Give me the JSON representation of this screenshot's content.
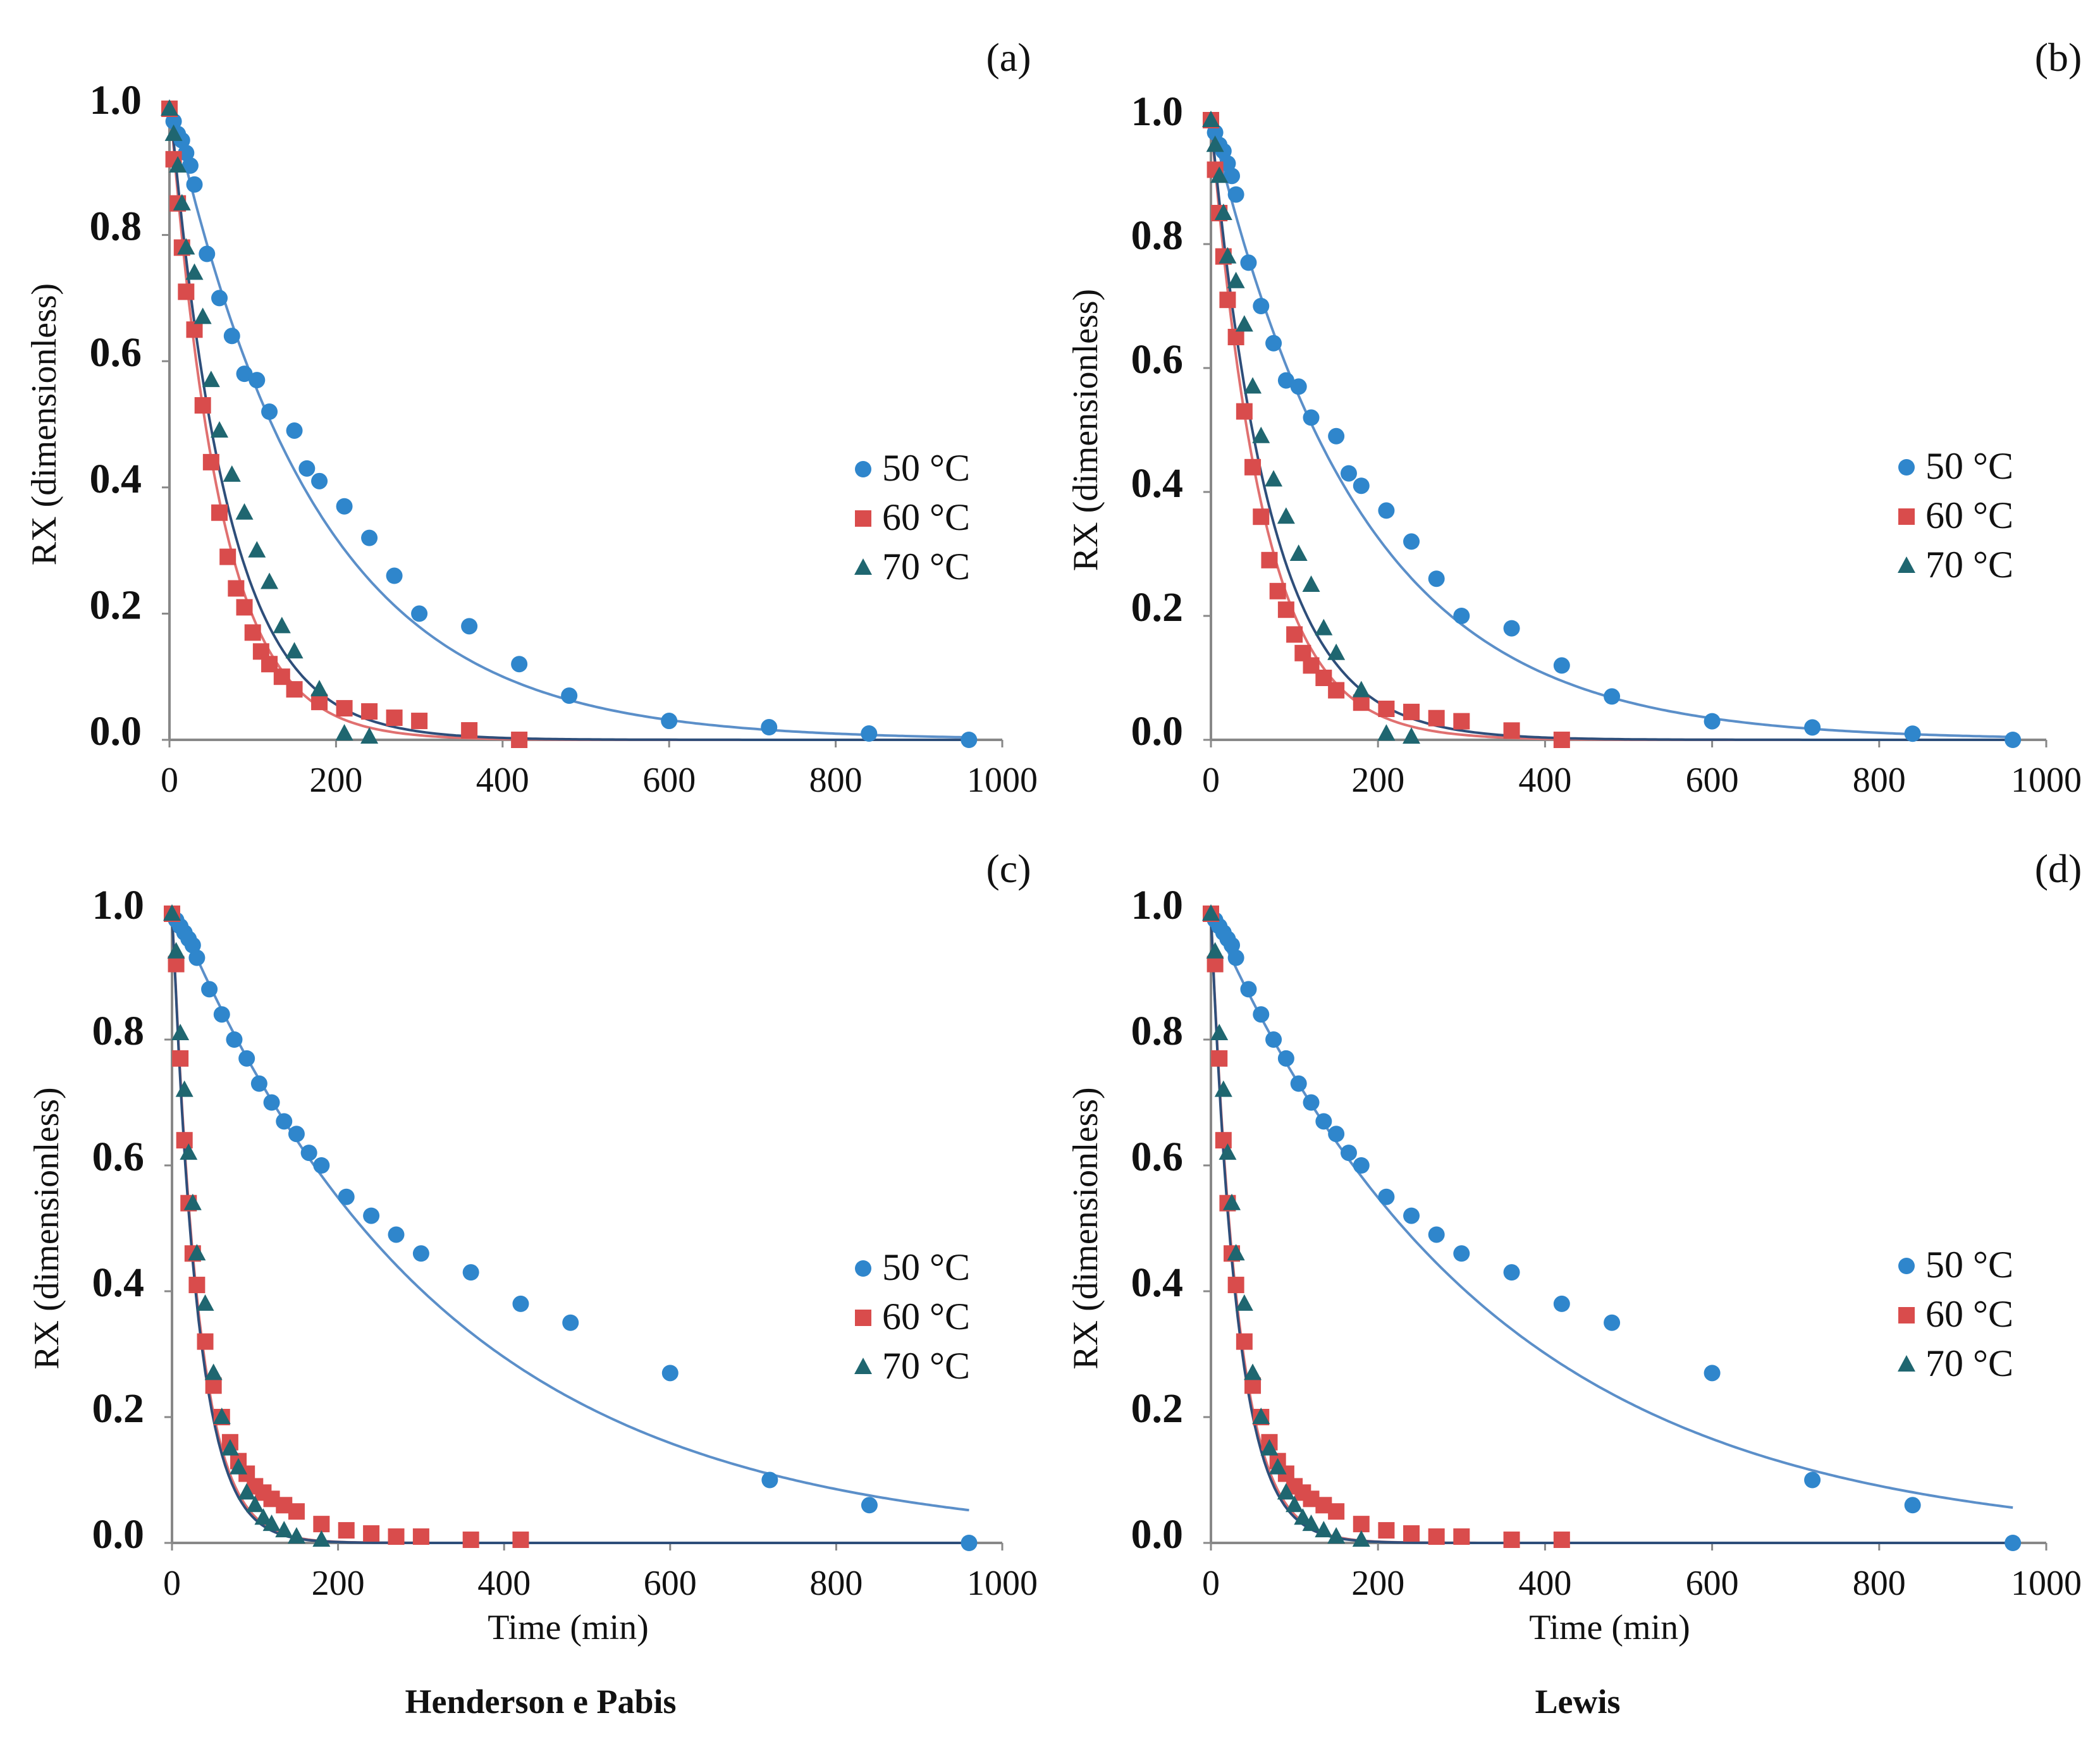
{
  "colors": {
    "s50": "#2f86cc",
    "s60": "#d94c4c",
    "s70": "#1f6670",
    "fit50": "#5b8fc9",
    "fit60": "#e07070",
    "fit70": "#2e4e7a",
    "axis": "#888888",
    "text": "#111111"
  },
  "captions": {
    "left": "Henderson e Pabis",
    "right": "Lewis"
  },
  "chart_data": [
    {
      "type": "scatter",
      "panel_label": "(a)",
      "ylabel": "RX (dimensionless)",
      "xlabel": "",
      "xlim": [
        0,
        1000
      ],
      "ylim": [
        0,
        1.0
      ],
      "xticks": [
        "0",
        "200",
        "400",
        "600",
        "800",
        "1000"
      ],
      "yticks": [
        "0.0",
        "0.2",
        "0.4",
        "0.6",
        "0.8",
        "1.0"
      ],
      "grid": false,
      "legend": "right",
      "series": [
        {
          "name": "50 °C",
          "marker": "circle",
          "color_key": "s50",
          "line_key": "fit50",
          "x": [
            0,
            5,
            10,
            15,
            20,
            25,
            30,
            45,
            60,
            75,
            90,
            105,
            120,
            150,
            165,
            180,
            210,
            240,
            270,
            300,
            360,
            420,
            480,
            600,
            720,
            840,
            960
          ],
          "y": [
            1.0,
            0.98,
            0.96,
            0.95,
            0.93,
            0.91,
            0.88,
            0.77,
            0.7,
            0.64,
            0.58,
            0.57,
            0.52,
            0.49,
            0.43,
            0.41,
            0.37,
            0.32,
            0.26,
            0.2,
            0.18,
            0.12,
            0.07,
            0.03,
            0.02,
            0.01,
            0.0
          ],
          "fit": {
            "a": 1.02,
            "k": 0.0058
          }
        },
        {
          "name": "60 °C",
          "marker": "square",
          "color_key": "s60",
          "line_key": "fit60",
          "x": [
            0,
            5,
            10,
            15,
            20,
            30,
            40,
            50,
            60,
            70,
            80,
            90,
            100,
            110,
            120,
            135,
            150,
            180,
            210,
            240,
            270,
            300,
            360,
            420
          ],
          "y": [
            1.0,
            0.92,
            0.85,
            0.78,
            0.71,
            0.65,
            0.53,
            0.44,
            0.36,
            0.29,
            0.24,
            0.21,
            0.17,
            0.14,
            0.12,
            0.1,
            0.08,
            0.06,
            0.05,
            0.045,
            0.035,
            0.03,
            0.015,
            0.0
          ],
          "fit": {
            "a": 1.02,
            "k": 0.0165
          }
        },
        {
          "name": "70 °C",
          "marker": "triangle",
          "color_key": "s70",
          "line_key": "fit70",
          "x": [
            0,
            5,
            10,
            15,
            20,
            30,
            40,
            50,
            60,
            75,
            90,
            105,
            120,
            135,
            150,
            180,
            210,
            240
          ],
          "y": [
            1.0,
            0.96,
            0.91,
            0.85,
            0.78,
            0.74,
            0.67,
            0.57,
            0.49,
            0.42,
            0.36,
            0.3,
            0.25,
            0.18,
            0.14,
            0.08,
            0.01,
            0.005
          ],
          "fit": {
            "a": 1.02,
            "k": 0.0145
          }
        }
      ]
    },
    {
      "type": "scatter",
      "panel_label": "(b)",
      "ylabel": "RX (dimensionless)",
      "xlabel": "",
      "xlim": [
        0,
        1000
      ],
      "ylim": [
        0,
        1.0
      ],
      "xticks": [
        "0",
        "200",
        "400",
        "600",
        "800",
        "1000"
      ],
      "yticks": [
        "0.0",
        "0.2",
        "0.4",
        "0.6",
        "0.8",
        "1.0"
      ],
      "grid": false,
      "legend": "right",
      "series": [
        {
          "name": "50 °C",
          "marker": "circle",
          "color_key": "s50",
          "line_key": "fit50",
          "x": [
            0,
            5,
            10,
            15,
            20,
            25,
            30,
            45,
            60,
            75,
            90,
            105,
            120,
            150,
            165,
            180,
            210,
            240,
            270,
            300,
            360,
            420,
            480,
            600,
            720,
            840,
            960
          ],
          "y": [
            1.0,
            0.98,
            0.96,
            0.95,
            0.93,
            0.91,
            0.88,
            0.77,
            0.7,
            0.64,
            0.58,
            0.57,
            0.52,
            0.49,
            0.43,
            0.41,
            0.37,
            0.32,
            0.26,
            0.2,
            0.18,
            0.12,
            0.07,
            0.03,
            0.02,
            0.01,
            0.0
          ],
          "fit": {
            "a": 1.0,
            "k": 0.0056
          }
        },
        {
          "name": "60 °C",
          "marker": "square",
          "color_key": "s60",
          "line_key": "fit60",
          "x": [
            0,
            5,
            10,
            15,
            20,
            30,
            40,
            50,
            60,
            70,
            80,
            90,
            100,
            110,
            120,
            135,
            150,
            180,
            210,
            240,
            270,
            300,
            360,
            420
          ],
          "y": [
            1.0,
            0.92,
            0.85,
            0.78,
            0.71,
            0.65,
            0.53,
            0.44,
            0.36,
            0.29,
            0.24,
            0.21,
            0.17,
            0.14,
            0.12,
            0.1,
            0.08,
            0.06,
            0.05,
            0.045,
            0.035,
            0.03,
            0.015,
            0.0
          ],
          "fit": {
            "a": 1.0,
            "k": 0.016
          }
        },
        {
          "name": "70 °C",
          "marker": "triangle",
          "color_key": "s70",
          "line_key": "fit70",
          "x": [
            0,
            5,
            10,
            15,
            20,
            30,
            40,
            50,
            60,
            75,
            90,
            105,
            120,
            135,
            150,
            180,
            210,
            240
          ],
          "y": [
            1.0,
            0.96,
            0.91,
            0.85,
            0.78,
            0.74,
            0.67,
            0.57,
            0.49,
            0.42,
            0.36,
            0.3,
            0.25,
            0.18,
            0.14,
            0.08,
            0.01,
            0.005
          ],
          "fit": {
            "a": 1.0,
            "k": 0.014
          }
        }
      ]
    },
    {
      "type": "scatter",
      "panel_label": "(c)",
      "ylabel": "RX (dimensionless)",
      "xlabel": "Time (min)",
      "xlim": [
        0,
        1000
      ],
      "ylim": [
        0,
        1.0
      ],
      "xticks": [
        "0",
        "200",
        "400",
        "600",
        "800",
        "1000"
      ],
      "yticks": [
        "0.0",
        "0.2",
        "0.4",
        "0.6",
        "0.8",
        "1.0"
      ],
      "grid": false,
      "legend": "right",
      "series": [
        {
          "name": "50 °C",
          "marker": "circle",
          "color_key": "s50",
          "line_key": "fit50",
          "x": [
            0,
            5,
            10,
            15,
            20,
            25,
            30,
            45,
            60,
            75,
            90,
            105,
            120,
            135,
            150,
            165,
            180,
            210,
            240,
            270,
            300,
            360,
            420,
            480,
            600,
            720,
            840,
            960
          ],
          "y": [
            1.0,
            0.99,
            0.98,
            0.97,
            0.96,
            0.95,
            0.93,
            0.88,
            0.84,
            0.8,
            0.77,
            0.73,
            0.7,
            0.67,
            0.65,
            0.62,
            0.6,
            0.55,
            0.52,
            0.49,
            0.46,
            0.43,
            0.38,
            0.35,
            0.27,
            0.1,
            0.06,
            0.0
          ],
          "fit": {
            "a": 1.02,
            "k": 0.0031
          }
        },
        {
          "name": "60 °C",
          "marker": "square",
          "color_key": "s60",
          "line_key": "fit60",
          "x": [
            0,
            5,
            10,
            15,
            20,
            25,
            30,
            40,
            50,
            60,
            70,
            80,
            90,
            100,
            110,
            120,
            135,
            150,
            180,
            210,
            240,
            270,
            300,
            360,
            420
          ],
          "y": [
            1.0,
            0.92,
            0.77,
            0.64,
            0.54,
            0.46,
            0.41,
            0.32,
            0.25,
            0.2,
            0.16,
            0.13,
            0.11,
            0.09,
            0.08,
            0.07,
            0.06,
            0.05,
            0.03,
            0.02,
            0.015,
            0.01,
            0.01,
            0.005,
            0.005
          ],
          "fit": {
            "a": 1.02,
            "k": 0.032
          }
        },
        {
          "name": "70 °C",
          "marker": "triangle",
          "color_key": "s70",
          "line_key": "fit70",
          "x": [
            0,
            5,
            10,
            15,
            20,
            25,
            30,
            40,
            50,
            60,
            70,
            80,
            90,
            100,
            110,
            120,
            135,
            150,
            180
          ],
          "y": [
            1.0,
            0.94,
            0.81,
            0.72,
            0.62,
            0.54,
            0.46,
            0.38,
            0.27,
            0.2,
            0.15,
            0.12,
            0.08,
            0.06,
            0.04,
            0.03,
            0.02,
            0.01,
            0.005
          ],
          "fit": {
            "a": 1.02,
            "k": 0.033
          }
        }
      ]
    },
    {
      "type": "scatter",
      "panel_label": "(d)",
      "ylabel": "RX (dimensionless)",
      "xlabel": "Time (min)",
      "xlim": [
        0,
        1000
      ],
      "ylim": [
        0,
        1.0
      ],
      "xticks": [
        "0",
        "200",
        "400",
        "600",
        "800",
        "1000"
      ],
      "yticks": [
        "0.0",
        "0.2",
        "0.4",
        "0.6",
        "0.8",
        "1.0"
      ],
      "grid": false,
      "legend": "right",
      "series": [
        {
          "name": "50 °C",
          "marker": "circle",
          "color_key": "s50",
          "line_key": "fit50",
          "x": [
            0,
            5,
            10,
            15,
            20,
            25,
            30,
            45,
            60,
            75,
            90,
            105,
            120,
            135,
            150,
            165,
            180,
            210,
            240,
            270,
            300,
            360,
            420,
            480,
            600,
            720,
            840,
            960
          ],
          "y": [
            1.0,
            0.99,
            0.98,
            0.97,
            0.96,
            0.95,
            0.93,
            0.88,
            0.84,
            0.8,
            0.77,
            0.73,
            0.7,
            0.67,
            0.65,
            0.62,
            0.6,
            0.55,
            0.52,
            0.49,
            0.46,
            0.43,
            0.38,
            0.35,
            0.27,
            0.1,
            0.06,
            0.0
          ],
          "fit": {
            "a": 1.0,
            "k": 0.003
          }
        },
        {
          "name": "60 °C",
          "marker": "square",
          "color_key": "s60",
          "line_key": "fit60",
          "x": [
            0,
            5,
            10,
            15,
            20,
            25,
            30,
            40,
            50,
            60,
            70,
            80,
            90,
            100,
            110,
            120,
            135,
            150,
            180,
            210,
            240,
            270,
            300,
            360,
            420
          ],
          "y": [
            1.0,
            0.92,
            0.77,
            0.64,
            0.54,
            0.46,
            0.41,
            0.32,
            0.25,
            0.2,
            0.16,
            0.13,
            0.11,
            0.09,
            0.08,
            0.07,
            0.06,
            0.05,
            0.03,
            0.02,
            0.015,
            0.01,
            0.01,
            0.005,
            0.005
          ],
          "fit": {
            "a": 1.0,
            "k": 0.031
          }
        },
        {
          "name": "70 °C",
          "marker": "triangle",
          "color_key": "s70",
          "line_key": "fit70",
          "x": [
            0,
            5,
            10,
            15,
            20,
            25,
            30,
            40,
            50,
            60,
            70,
            80,
            90,
            100,
            110,
            120,
            135,
            150,
            180
          ],
          "y": [
            1.0,
            0.94,
            0.81,
            0.72,
            0.62,
            0.54,
            0.46,
            0.38,
            0.27,
            0.2,
            0.15,
            0.12,
            0.08,
            0.06,
            0.04,
            0.03,
            0.02,
            0.01,
            0.005
          ],
          "fit": {
            "a": 1.0,
            "k": 0.032
          }
        }
      ]
    }
  ]
}
